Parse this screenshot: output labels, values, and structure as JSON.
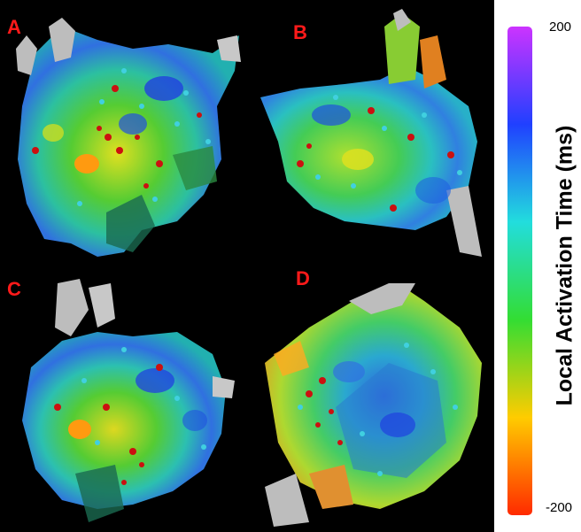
{
  "panels": [
    {
      "letter": "A"
    },
    {
      "letter": "B"
    },
    {
      "letter": "C"
    },
    {
      "letter": "D"
    }
  ],
  "colorbar": {
    "label": "Local Activation Time (ms)",
    "max_label": "200",
    "min_label": "-200",
    "colors": [
      "#ff2a00",
      "#ffcc00",
      "#33dd33",
      "#22dddd",
      "#2040ff",
      "#cc33ff"
    ]
  }
}
